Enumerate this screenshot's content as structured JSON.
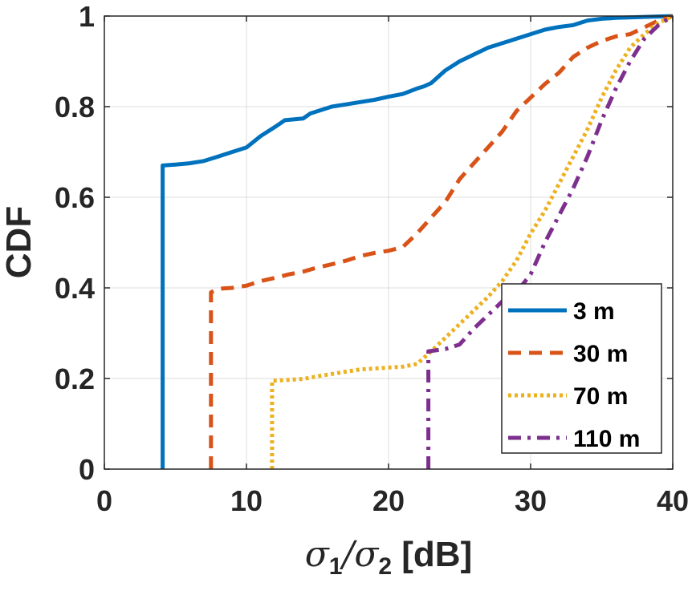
{
  "chart_data": {
    "type": "line",
    "title": "",
    "xlabel": {
      "sym1": "σ",
      "sub1": "1",
      "slash": "/",
      "sym2": "σ",
      "sub2": "2",
      "unit": " [dB]"
    },
    "ylabel": "CDF",
    "xlim": [
      0,
      40
    ],
    "ylim": [
      0,
      1
    ],
    "x_ticks": [
      0,
      10,
      20,
      30,
      40
    ],
    "y_ticks": [
      0,
      0.2,
      0.4,
      0.6,
      0.8,
      1
    ],
    "x_tick_labels": [
      "0",
      "10",
      "20",
      "30",
      "40"
    ],
    "y_tick_labels": [
      "0",
      "0.2",
      "0.4",
      "0.6",
      "0.8",
      "1"
    ],
    "grid": true,
    "legend_position": "bottom-right",
    "series": [
      {
        "name": "3 m",
        "color": "#0072BD",
        "style": "solid",
        "points": [
          [
            4.1,
            0
          ],
          [
            4.1,
            0.67
          ],
          [
            5,
            0.672
          ],
          [
            6,
            0.675
          ],
          [
            7,
            0.68
          ],
          [
            8,
            0.69
          ],
          [
            9,
            0.7
          ],
          [
            10,
            0.71
          ],
          [
            11,
            0.735
          ],
          [
            12,
            0.755
          ],
          [
            12.7,
            0.77
          ],
          [
            14,
            0.774
          ],
          [
            14.5,
            0.785
          ],
          [
            16,
            0.8
          ],
          [
            17,
            0.805
          ],
          [
            18,
            0.81
          ],
          [
            19,
            0.815
          ],
          [
            20,
            0.822
          ],
          [
            21,
            0.828
          ],
          [
            22,
            0.84
          ],
          [
            22.5,
            0.845
          ],
          [
            23,
            0.852
          ],
          [
            24,
            0.88
          ],
          [
            25,
            0.9
          ],
          [
            26,
            0.915
          ],
          [
            27,
            0.93
          ],
          [
            28,
            0.94
          ],
          [
            29,
            0.95
          ],
          [
            30,
            0.96
          ],
          [
            31,
            0.97
          ],
          [
            32,
            0.976
          ],
          [
            33,
            0.98
          ],
          [
            34,
            0.99
          ],
          [
            35,
            0.994
          ],
          [
            36,
            0.996
          ],
          [
            38,
            0.998
          ],
          [
            40,
            1.0
          ]
        ]
      },
      {
        "name": "30 m",
        "color": "#D95319",
        "style": "dashed",
        "points": [
          [
            7.5,
            0
          ],
          [
            7.5,
            0.39
          ],
          [
            8,
            0.398
          ],
          [
            9,
            0.4
          ],
          [
            10,
            0.405
          ],
          [
            11,
            0.415
          ],
          [
            12,
            0.422
          ],
          [
            13,
            0.43
          ],
          [
            14,
            0.436
          ],
          [
            15,
            0.445
          ],
          [
            16,
            0.452
          ],
          [
            17,
            0.46
          ],
          [
            18,
            0.47
          ],
          [
            19,
            0.477
          ],
          [
            20,
            0.482
          ],
          [
            21,
            0.49
          ],
          [
            22,
            0.52
          ],
          [
            23,
            0.555
          ],
          [
            24,
            0.59
          ],
          [
            25,
            0.64
          ],
          [
            26,
            0.675
          ],
          [
            27,
            0.71
          ],
          [
            28,
            0.745
          ],
          [
            29,
            0.79
          ],
          [
            30,
            0.82
          ],
          [
            31,
            0.85
          ],
          [
            32,
            0.875
          ],
          [
            33,
            0.91
          ],
          [
            34,
            0.93
          ],
          [
            35,
            0.945
          ],
          [
            36,
            0.955
          ],
          [
            37,
            0.96
          ],
          [
            38,
            0.975
          ],
          [
            39,
            0.99
          ],
          [
            40,
            1.0
          ]
        ]
      },
      {
        "name": "70 m",
        "color": "#EDB120",
        "style": "dotted",
        "points": [
          [
            11.8,
            0
          ],
          [
            11.8,
            0.195
          ],
          [
            13,
            0.197
          ],
          [
            14,
            0.199
          ],
          [
            15,
            0.205
          ],
          [
            16,
            0.21
          ],
          [
            17,
            0.215
          ],
          [
            18,
            0.22
          ],
          [
            19,
            0.222
          ],
          [
            20,
            0.224
          ],
          [
            21,
            0.226
          ],
          [
            22,
            0.232
          ],
          [
            23,
            0.26
          ],
          [
            24,
            0.29
          ],
          [
            25,
            0.32
          ],
          [
            26,
            0.35
          ],
          [
            27,
            0.38
          ],
          [
            28,
            0.415
          ],
          [
            29,
            0.46
          ],
          [
            30,
            0.52
          ],
          [
            31,
            0.57
          ],
          [
            32,
            0.63
          ],
          [
            33,
            0.69
          ],
          [
            34,
            0.75
          ],
          [
            35,
            0.82
          ],
          [
            36,
            0.88
          ],
          [
            37,
            0.93
          ],
          [
            38,
            0.96
          ],
          [
            39,
            0.985
          ],
          [
            40,
            1.0
          ]
        ]
      },
      {
        "name": "110 m",
        "color": "#7E2F8E",
        "style": "dashdot",
        "points": [
          [
            22.8,
            0
          ],
          [
            22.8,
            0.26
          ],
          [
            24,
            0.265
          ],
          [
            25,
            0.275
          ],
          [
            26,
            0.31
          ],
          [
            27,
            0.34
          ],
          [
            28,
            0.37
          ],
          [
            29,
            0.39
          ],
          [
            30,
            0.43
          ],
          [
            31,
            0.5
          ],
          [
            32,
            0.56
          ],
          [
            33,
            0.62
          ],
          [
            34,
            0.69
          ],
          [
            35,
            0.77
          ],
          [
            36,
            0.84
          ],
          [
            37,
            0.9
          ],
          [
            38,
            0.95
          ],
          [
            39,
            0.98
          ],
          [
            40,
            1.0
          ]
        ]
      }
    ]
  }
}
